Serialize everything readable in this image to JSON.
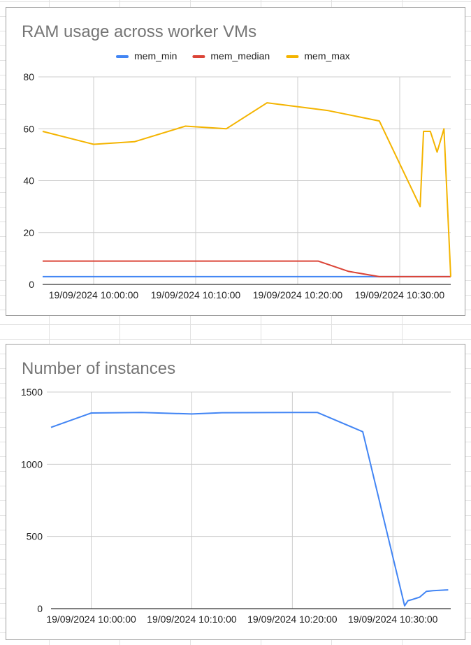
{
  "chart_data": [
    {
      "type": "line",
      "title": "RAM usage across worker VMs",
      "xlabel": "",
      "ylabel": "",
      "ylim": [
        0,
        80
      ],
      "yticks": [
        "0",
        "20",
        "40",
        "60",
        "80"
      ],
      "xticks": [
        "19/09/2024 10:00:00",
        "19/09/2024 10:10:00",
        "19/09/2024 10:20:00",
        "19/09/2024 10:30:00"
      ],
      "legend_position": "top",
      "grid": true,
      "series": [
        {
          "name": "mem_min",
          "color": "#4285f4",
          "x": [
            "09:55:00",
            "10:00:00",
            "10:05:00",
            "10:10:00",
            "10:15:00",
            "10:20:00",
            "10:25:00",
            "10:28:00",
            "10:30:00",
            "10:31:00",
            "10:32:00",
            "10:33:00",
            "10:34:00",
            "10:35:00"
          ],
          "y": [
            3,
            3,
            3,
            3,
            3,
            3,
            3,
            3,
            3,
            3,
            3,
            3,
            3,
            3
          ]
        },
        {
          "name": "mem_median",
          "color": "#db4437",
          "x": [
            "09:55:00",
            "10:00:00",
            "10:05:00",
            "10:10:00",
            "10:15:00",
            "10:20:00",
            "10:22:00",
            "10:25:00",
            "10:28:00",
            "10:30:00",
            "10:32:00",
            "10:35:00"
          ],
          "y": [
            9,
            9,
            9,
            9,
            9,
            9,
            9,
            5,
            3,
            3,
            3,
            3
          ]
        },
        {
          "name": "mem_max",
          "color": "#f4b400",
          "x": [
            "09:55:00",
            "10:00:00",
            "10:04:00",
            "10:09:00",
            "10:13:00",
            "10:17:00",
            "10:23:00",
            "10:28:00",
            "10:32:00",
            "10:32:20",
            "10:33:00",
            "10:33:40",
            "10:34:20",
            "10:35:00"
          ],
          "y": [
            59,
            54,
            55,
            61,
            60,
            70,
            67,
            63,
            30,
            59,
            59,
            51,
            60,
            3
          ]
        }
      ]
    },
    {
      "type": "line",
      "title": "Number of instances",
      "xlabel": "",
      "ylabel": "",
      "ylim": [
        0,
        1500
      ],
      "yticks": [
        "0",
        "500",
        "1000",
        "1500"
      ],
      "xticks": [
        "19/09/2024 10:00:00",
        "19/09/2024 10:10:00",
        "19/09/2024 10:20:00",
        "19/09/2024 10:30:00"
      ],
      "legend_position": "none",
      "grid": true,
      "series": [
        {
          "color": "#4285f4",
          "x": [
            "09:56:00",
            "10:00:00",
            "10:05:00",
            "10:10:00",
            "10:13:00",
            "10:20:00",
            "10:22:30",
            "10:27:00",
            "10:31:10",
            "10:31:30",
            "10:32:00",
            "10:32:40",
            "10:33:20",
            "10:34:00",
            "10:35:30"
          ],
          "y": [
            1255,
            1355,
            1358,
            1348,
            1357,
            1358,
            1358,
            1225,
            20,
            55,
            65,
            80,
            120,
            125,
            130
          ]
        }
      ]
    }
  ]
}
